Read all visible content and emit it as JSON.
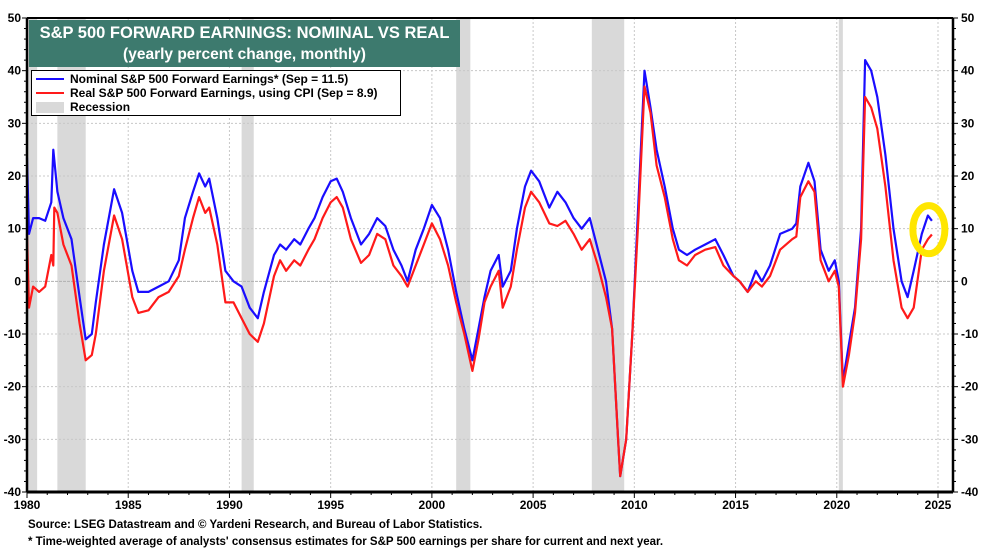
{
  "chart_data": {
    "type": "line",
    "title": "S&P 500 FORWARD EARNINGS: NOMINAL VS REAL",
    "subtitle": "(yearly percent change, monthly)",
    "xlabel": "",
    "ylabel": "",
    "xlim": [
      1980,
      2025.8
    ],
    "ylim": [
      -40,
      50
    ],
    "x_ticks": [
      "1980",
      "1985",
      "1990",
      "1995",
      "2000",
      "2005",
      "2010",
      "2015",
      "2020",
      "2025"
    ],
    "x_tick_values": [
      1980,
      1985,
      1990,
      1995,
      2000,
      2005,
      2010,
      2015,
      2020,
      2025
    ],
    "y_ticks": [
      50,
      40,
      30,
      20,
      10,
      0,
      -10,
      -20,
      -30,
      -40
    ],
    "y_tick_labels": [
      "50",
      "40",
      "30",
      "20",
      "10",
      "0",
      "-10",
      "-20",
      "-30",
      "-40"
    ],
    "grid": true,
    "legend_position": "top-left",
    "legend": [
      {
        "label": "Nominal S&P 500 Forward Earnings* (Sep = 11.5)",
        "color": "#1a0dff",
        "kind": "line"
      },
      {
        "label": "Real S&P 500 Forward Earnings, using CPI (Sep = 8.9)",
        "color": "#ff1a1a",
        "kind": "line"
      },
      {
        "label": "Recession",
        "color": "#d9d9d9",
        "kind": "box"
      }
    ],
    "recessions": [
      [
        1980.0,
        1980.5
      ],
      [
        1981.5,
        1982.9
      ],
      [
        1990.6,
        1991.2
      ],
      [
        2001.2,
        2001.9
      ],
      [
        2007.9,
        2009.5
      ],
      [
        2020.1,
        2020.3
      ]
    ],
    "annotation": {
      "type": "highlight-circle",
      "color": "#ffe600",
      "center": [
        2024.5,
        10
      ],
      "note": "hand-drawn circle around latest values"
    },
    "series": [
      {
        "name": "Nominal S&P 500 Forward Earnings",
        "color": "#1a0dff",
        "points": [
          [
            1980.0,
            23.5
          ],
          [
            1980.1,
            9
          ],
          [
            1980.3,
            12
          ],
          [
            1980.6,
            12
          ],
          [
            1980.9,
            11.5
          ],
          [
            1981.2,
            15
          ],
          [
            1981.3,
            25
          ],
          [
            1981.5,
            17
          ],
          [
            1981.8,
            12
          ],
          [
            1982.2,
            8
          ],
          [
            1982.6,
            -3
          ],
          [
            1982.9,
            -11
          ],
          [
            1983.2,
            -10
          ],
          [
            1983.4,
            -4
          ],
          [
            1983.8,
            7
          ],
          [
            1984.3,
            17.5
          ],
          [
            1984.7,
            13
          ],
          [
            1985.2,
            2
          ],
          [
            1985.5,
            -2
          ],
          [
            1986.0,
            -2
          ],
          [
            1986.5,
            -1
          ],
          [
            1987.0,
            0
          ],
          [
            1987.5,
            4
          ],
          [
            1987.8,
            12
          ],
          [
            1988.2,
            17
          ],
          [
            1988.5,
            20.5
          ],
          [
            1988.8,
            18
          ],
          [
            1989.0,
            19.5
          ],
          [
            1989.4,
            12
          ],
          [
            1989.8,
            2
          ],
          [
            1990.2,
            0
          ],
          [
            1990.6,
            -1
          ],
          [
            1991.0,
            -5
          ],
          [
            1991.4,
            -7
          ],
          [
            1991.7,
            -2
          ],
          [
            1992.2,
            5
          ],
          [
            1992.5,
            7
          ],
          [
            1992.8,
            6
          ],
          [
            1993.2,
            8
          ],
          [
            1993.5,
            7
          ],
          [
            1993.9,
            10
          ],
          [
            1994.2,
            12
          ],
          [
            1994.6,
            16
          ],
          [
            1995.0,
            19
          ],
          [
            1995.3,
            19.5
          ],
          [
            1995.6,
            17
          ],
          [
            1996.0,
            12
          ],
          [
            1996.5,
            7
          ],
          [
            1996.9,
            9
          ],
          [
            1997.3,
            12
          ],
          [
            1997.7,
            10.5
          ],
          [
            1998.1,
            6
          ],
          [
            1998.5,
            3
          ],
          [
            1998.8,
            0
          ],
          [
            1999.2,
            6
          ],
          [
            1999.6,
            10
          ],
          [
            2000.0,
            14.5
          ],
          [
            2000.4,
            12
          ],
          [
            2000.8,
            6
          ],
          [
            2001.2,
            -2
          ],
          [
            2001.6,
            -9
          ],
          [
            2002.0,
            -15
          ],
          [
            2002.3,
            -9
          ],
          [
            2002.6,
            -3
          ],
          [
            2002.9,
            2
          ],
          [
            2003.3,
            5
          ],
          [
            2003.5,
            -1
          ],
          [
            2003.9,
            2
          ],
          [
            2004.2,
            10
          ],
          [
            2004.6,
            18
          ],
          [
            2004.9,
            21
          ],
          [
            2005.3,
            19
          ],
          [
            2005.8,
            14
          ],
          [
            2006.2,
            17
          ],
          [
            2006.6,
            15
          ],
          [
            2007.0,
            12
          ],
          [
            2007.4,
            10
          ],
          [
            2007.8,
            12
          ],
          [
            2008.2,
            6
          ],
          [
            2008.6,
            0
          ],
          [
            2008.9,
            -9
          ],
          [
            2009.2,
            -30
          ],
          [
            2009.3,
            -37
          ],
          [
            2009.6,
            -30
          ],
          [
            2009.9,
            -10
          ],
          [
            2010.2,
            15
          ],
          [
            2010.5,
            40
          ],
          [
            2010.8,
            33
          ],
          [
            2011.1,
            25
          ],
          [
            2011.5,
            18
          ],
          [
            2011.9,
            10
          ],
          [
            2012.2,
            6
          ],
          [
            2012.6,
            5
          ],
          [
            2013.0,
            6
          ],
          [
            2013.5,
            7
          ],
          [
            2014.0,
            8
          ],
          [
            2014.4,
            5
          ],
          [
            2014.9,
            1
          ],
          [
            2015.2,
            0
          ],
          [
            2015.6,
            -2
          ],
          [
            2016.0,
            2
          ],
          [
            2016.3,
            0
          ],
          [
            2016.7,
            3
          ],
          [
            2017.2,
            9
          ],
          [
            2017.8,
            10
          ],
          [
            2018.0,
            11
          ],
          [
            2018.2,
            18
          ],
          [
            2018.6,
            22.5
          ],
          [
            2018.9,
            19
          ],
          [
            2019.2,
            6
          ],
          [
            2019.6,
            2
          ],
          [
            2019.9,
            4
          ],
          [
            2020.1,
            0
          ],
          [
            2020.3,
            -19
          ],
          [
            2020.6,
            -12
          ],
          [
            2020.9,
            -5
          ],
          [
            2021.2,
            10
          ],
          [
            2021.4,
            42
          ],
          [
            2021.7,
            40
          ],
          [
            2022.0,
            35
          ],
          [
            2022.4,
            24
          ],
          [
            2022.8,
            10
          ],
          [
            2023.2,
            0
          ],
          [
            2023.5,
            -3
          ],
          [
            2023.8,
            2
          ],
          [
            2024.2,
            9
          ],
          [
            2024.5,
            12.5
          ],
          [
            2024.7,
            11.5
          ]
        ]
      },
      {
        "name": "Real S&P 500 Forward Earnings, using CPI",
        "color": "#ff1a1a",
        "points": [
          [
            1980.0,
            9
          ],
          [
            1980.1,
            -5
          ],
          [
            1980.3,
            -1
          ],
          [
            1980.6,
            -2
          ],
          [
            1980.9,
            -1
          ],
          [
            1981.2,
            5
          ],
          [
            1981.3,
            3
          ],
          [
            1981.35,
            14
          ],
          [
            1981.5,
            13
          ],
          [
            1981.8,
            7
          ],
          [
            1982.2,
            3
          ],
          [
            1982.6,
            -8
          ],
          [
            1982.9,
            -15
          ],
          [
            1983.2,
            -14
          ],
          [
            1983.4,
            -10
          ],
          [
            1983.8,
            2
          ],
          [
            1984.3,
            12.5
          ],
          [
            1984.7,
            8
          ],
          [
            1985.2,
            -3
          ],
          [
            1985.5,
            -6
          ],
          [
            1986.0,
            -5.5
          ],
          [
            1986.5,
            -3
          ],
          [
            1987.0,
            -2
          ],
          [
            1987.5,
            1
          ],
          [
            1987.8,
            6
          ],
          [
            1988.2,
            12
          ],
          [
            1988.5,
            16
          ],
          [
            1988.8,
            13
          ],
          [
            1989.0,
            14
          ],
          [
            1989.4,
            7
          ],
          [
            1989.8,
            -4
          ],
          [
            1990.2,
            -4
          ],
          [
            1990.6,
            -7
          ],
          [
            1991.0,
            -10
          ],
          [
            1991.4,
            -11.5
          ],
          [
            1991.7,
            -8
          ],
          [
            1992.2,
            1
          ],
          [
            1992.5,
            4
          ],
          [
            1992.8,
            2
          ],
          [
            1993.2,
            4
          ],
          [
            1993.5,
            3
          ],
          [
            1993.9,
            6
          ],
          [
            1994.2,
            8
          ],
          [
            1994.6,
            12
          ],
          [
            1995.0,
            15
          ],
          [
            1995.3,
            16
          ],
          [
            1995.6,
            14
          ],
          [
            1996.0,
            8
          ],
          [
            1996.5,
            3.5
          ],
          [
            1996.9,
            5
          ],
          [
            1997.3,
            9
          ],
          [
            1997.7,
            8
          ],
          [
            1998.1,
            3
          ],
          [
            1998.5,
            1
          ],
          [
            1998.8,
            -1
          ],
          [
            1999.2,
            3
          ],
          [
            1999.6,
            7
          ],
          [
            2000.0,
            11
          ],
          [
            2000.4,
            8
          ],
          [
            2000.8,
            3
          ],
          [
            2001.2,
            -4
          ],
          [
            2001.6,
            -10
          ],
          [
            2002.0,
            -17
          ],
          [
            2002.3,
            -11
          ],
          [
            2002.6,
            -4
          ],
          [
            2002.9,
            -1
          ],
          [
            2003.3,
            2
          ],
          [
            2003.5,
            -5
          ],
          [
            2003.9,
            -1
          ],
          [
            2004.2,
            6
          ],
          [
            2004.6,
            14
          ],
          [
            2004.9,
            17
          ],
          [
            2005.3,
            15
          ],
          [
            2005.8,
            11
          ],
          [
            2006.2,
            10.5
          ],
          [
            2006.6,
            11.5
          ],
          [
            2007.0,
            9
          ],
          [
            2007.4,
            6
          ],
          [
            2007.8,
            8
          ],
          [
            2008.2,
            3
          ],
          [
            2008.6,
            -3
          ],
          [
            2008.9,
            -9
          ],
          [
            2009.2,
            -30
          ],
          [
            2009.3,
            -37
          ],
          [
            2009.6,
            -30
          ],
          [
            2009.9,
            -10
          ],
          [
            2010.2,
            12
          ],
          [
            2010.5,
            37
          ],
          [
            2010.8,
            32
          ],
          [
            2011.1,
            22
          ],
          [
            2011.5,
            16
          ],
          [
            2011.9,
            8
          ],
          [
            2012.2,
            4
          ],
          [
            2012.6,
            3
          ],
          [
            2013.0,
            5
          ],
          [
            2013.5,
            6
          ],
          [
            2014.0,
            6.5
          ],
          [
            2014.4,
            3
          ],
          [
            2014.9,
            1
          ],
          [
            2015.2,
            0
          ],
          [
            2015.6,
            -2
          ],
          [
            2016.0,
            0
          ],
          [
            2016.3,
            -1
          ],
          [
            2016.7,
            1
          ],
          [
            2017.2,
            6
          ],
          [
            2017.8,
            8
          ],
          [
            2018.0,
            8.5
          ],
          [
            2018.2,
            16
          ],
          [
            2018.6,
            19
          ],
          [
            2018.9,
            17
          ],
          [
            2019.2,
            4
          ],
          [
            2019.6,
            0
          ],
          [
            2019.9,
            2
          ],
          [
            2020.1,
            -1
          ],
          [
            2020.3,
            -20
          ],
          [
            2020.6,
            -14
          ],
          [
            2020.9,
            -6
          ],
          [
            2021.2,
            8
          ],
          [
            2021.4,
            35
          ],
          [
            2021.7,
            33
          ],
          [
            2022.0,
            29
          ],
          [
            2022.4,
            18
          ],
          [
            2022.8,
            4
          ],
          [
            2023.2,
            -5
          ],
          [
            2023.5,
            -7
          ],
          [
            2023.8,
            -5
          ],
          [
            2024.2,
            6
          ],
          [
            2024.5,
            8
          ],
          [
            2024.7,
            8.9
          ]
        ]
      }
    ]
  },
  "title": {
    "line1": "S&P 500 FORWARD EARNINGS: NOMINAL VS REAL",
    "line2": "(yearly percent change, monthly)"
  },
  "legend": {
    "nominal": "Nominal S&P 500 Forward Earnings* (Sep = 11.5)",
    "real": "Real S&P 500 Forward Earnings, using CPI (Sep = 8.9)",
    "recession": "Recession"
  },
  "footer": {
    "source": "Source: LSEG Datastream and © Yardeni Research, and Bureau of Labor Statistics.",
    "note": "* Time-weighted average of analysts' consensus estimates for S&P 500 earnings per share for current and next year."
  }
}
